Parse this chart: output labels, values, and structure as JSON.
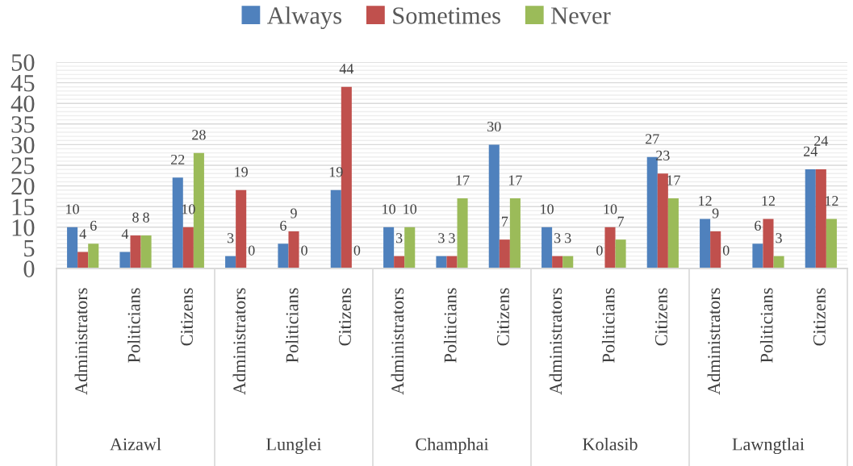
{
  "chart_data": {
    "type": "bar",
    "categories": [
      "Administrators",
      "Politicians",
      "Citizens",
      "Administrators",
      "Politicians",
      "Citizens",
      "Administrators",
      "Politicians",
      "Citizens",
      "Administrators",
      "Politicians",
      "Citizens",
      "Administrators",
      "Politicians",
      "Citizens"
    ],
    "series": [
      {
        "name": "Always",
        "color": "#4f81bd",
        "values": [
          10,
          4,
          22,
          3,
          6,
          19,
          10,
          3,
          30,
          10,
          0,
          27,
          12,
          6,
          24
        ]
      },
      {
        "name": "Sometimes",
        "color": "#c0504d",
        "values": [
          4,
          8,
          10,
          19,
          9,
          44,
          3,
          3,
          7,
          3,
          10,
          23,
          9,
          12,
          24
        ]
      },
      {
        "name": "Never",
        "color": "#9bbb59",
        "values": [
          6,
          8,
          28,
          0,
          0,
          0,
          10,
          17,
          17,
          3,
          7,
          17,
          0,
          3,
          12
        ]
      }
    ],
    "ylim": [
      0,
      50
    ],
    "yticks": [
      0,
      {
        "value": 1,
        "label": null
      },
      {
        "value": 2,
        "label": null
      },
      {
        "value": 3,
        "label": null
      },
      {
        "value": 4,
        "label": null
      },
      5,
      {
        "value": 6,
        "label": null
      },
      {
        "value": 7,
        "label": null
      },
      {
        "value": 8,
        "label": null
      },
      {
        "value": 9,
        "label": null
      },
      10,
      {
        "value": 11,
        "label": null
      },
      {
        "value": 12,
        "label": null
      },
      {
        "value": 13,
        "label": null
      },
      {
        "value": 14,
        "label": null
      },
      15,
      {
        "value": 16,
        "label": null
      },
      {
        "value": 17,
        "label": null
      },
      {
        "value": 18,
        "label": null
      },
      {
        "value": 19,
        "label": null
      },
      20,
      {
        "value": 21,
        "label": null
      },
      {
        "value": 22,
        "label": null
      },
      {
        "value": 23,
        "label": null
      },
      {
        "value": 24,
        "label": null
      },
      25,
      {
        "value": 26,
        "label": null
      },
      {
        "value": 27,
        "label": null
      },
      {
        "value": 28,
        "label": null
      },
      {
        "value": 29,
        "label": null
      },
      30,
      {
        "value": 31,
        "label": null
      },
      {
        "value": 32,
        "label": null
      },
      {
        "value": 33,
        "label": null
      },
      {
        "value": 34,
        "label": null
      },
      35,
      {
        "value": 36,
        "label": null
      },
      {
        "value": 37,
        "label": null
      },
      {
        "value": 38,
        "label": null
      },
      {
        "value": 39,
        "label": null
      },
      40,
      {
        "value": 41,
        "label": null
      },
      {
        "value": 42,
        "label": null
      },
      {
        "value": 43,
        "label": null
      },
      {
        "value": 44,
        "label": null
      },
      45,
      {
        "value": 46,
        "label": null
      },
      {
        "value": 47,
        "label": null
      },
      {
        "value": 48,
        "label": null
      },
      {
        "value": 49,
        "label": null
      },
      50
    ],
    "grid": "y",
    "legend": "top",
    "data_labels": true,
    "annotations": [
      "Aizawl",
      "Lunglei",
      "Champhai",
      "Kolasib",
      "Lawngtlai"
    ]
  }
}
